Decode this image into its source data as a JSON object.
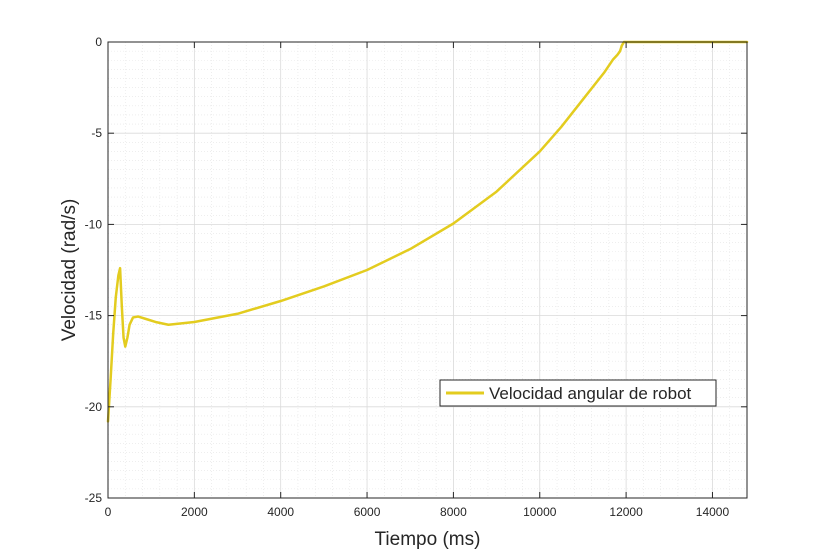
{
  "chart_data": {
    "type": "line",
    "title": "",
    "xlabel": "Tiempo (ms)",
    "ylabel": "Velocidad (rad/s)",
    "xlim": [
      0,
      14800
    ],
    "ylim": [
      -25,
      0
    ],
    "xticks": [
      0,
      2000,
      4000,
      6000,
      8000,
      10000,
      12000,
      14000
    ],
    "yticks": [
      0,
      -5,
      -10,
      -15,
      -20,
      -25
    ],
    "xtick_labels": [
      "0",
      "2000",
      "4000",
      "6000",
      "8000",
      "10000",
      "12000",
      "14000"
    ],
    "ytick_labels": [
      "0",
      "-5",
      "-10",
      "-15",
      "-20",
      "-25"
    ],
    "grid": true,
    "minor_grid": true,
    "legend": {
      "location": "lower-right",
      "entries": [
        "Velocidad angular de robot"
      ]
    },
    "series": [
      {
        "name": "Velocidad angular de robot",
        "color": "#e3cc1f",
        "points": [
          [
            0,
            -20.8
          ],
          [
            60,
            -18.5
          ],
          [
            120,
            -16.0
          ],
          [
            180,
            -14.0
          ],
          [
            240,
            -12.8
          ],
          [
            280,
            -12.4
          ],
          [
            320,
            -14.5
          ],
          [
            360,
            -16.2
          ],
          [
            400,
            -16.7
          ],
          [
            450,
            -16.2
          ],
          [
            500,
            -15.5
          ],
          [
            580,
            -15.1
          ],
          [
            700,
            -15.05
          ],
          [
            900,
            -15.2
          ],
          [
            1100,
            -15.35
          ],
          [
            1400,
            -15.5
          ],
          [
            2000,
            -15.35
          ],
          [
            3000,
            -14.9
          ],
          [
            4000,
            -14.2
          ],
          [
            5000,
            -13.4
          ],
          [
            6000,
            -12.5
          ],
          [
            7000,
            -11.35
          ],
          [
            8000,
            -9.95
          ],
          [
            9000,
            -8.2
          ],
          [
            10000,
            -6.0
          ],
          [
            10500,
            -4.65
          ],
          [
            11000,
            -3.15
          ],
          [
            11500,
            -1.65
          ],
          [
            11700,
            -0.95
          ],
          [
            11800,
            -0.7
          ],
          [
            11860,
            -0.5
          ],
          [
            11900,
            -0.2
          ],
          [
            11950,
            0.0
          ],
          [
            12500,
            0.0
          ],
          [
            14800,
            0.0
          ]
        ]
      }
    ]
  }
}
